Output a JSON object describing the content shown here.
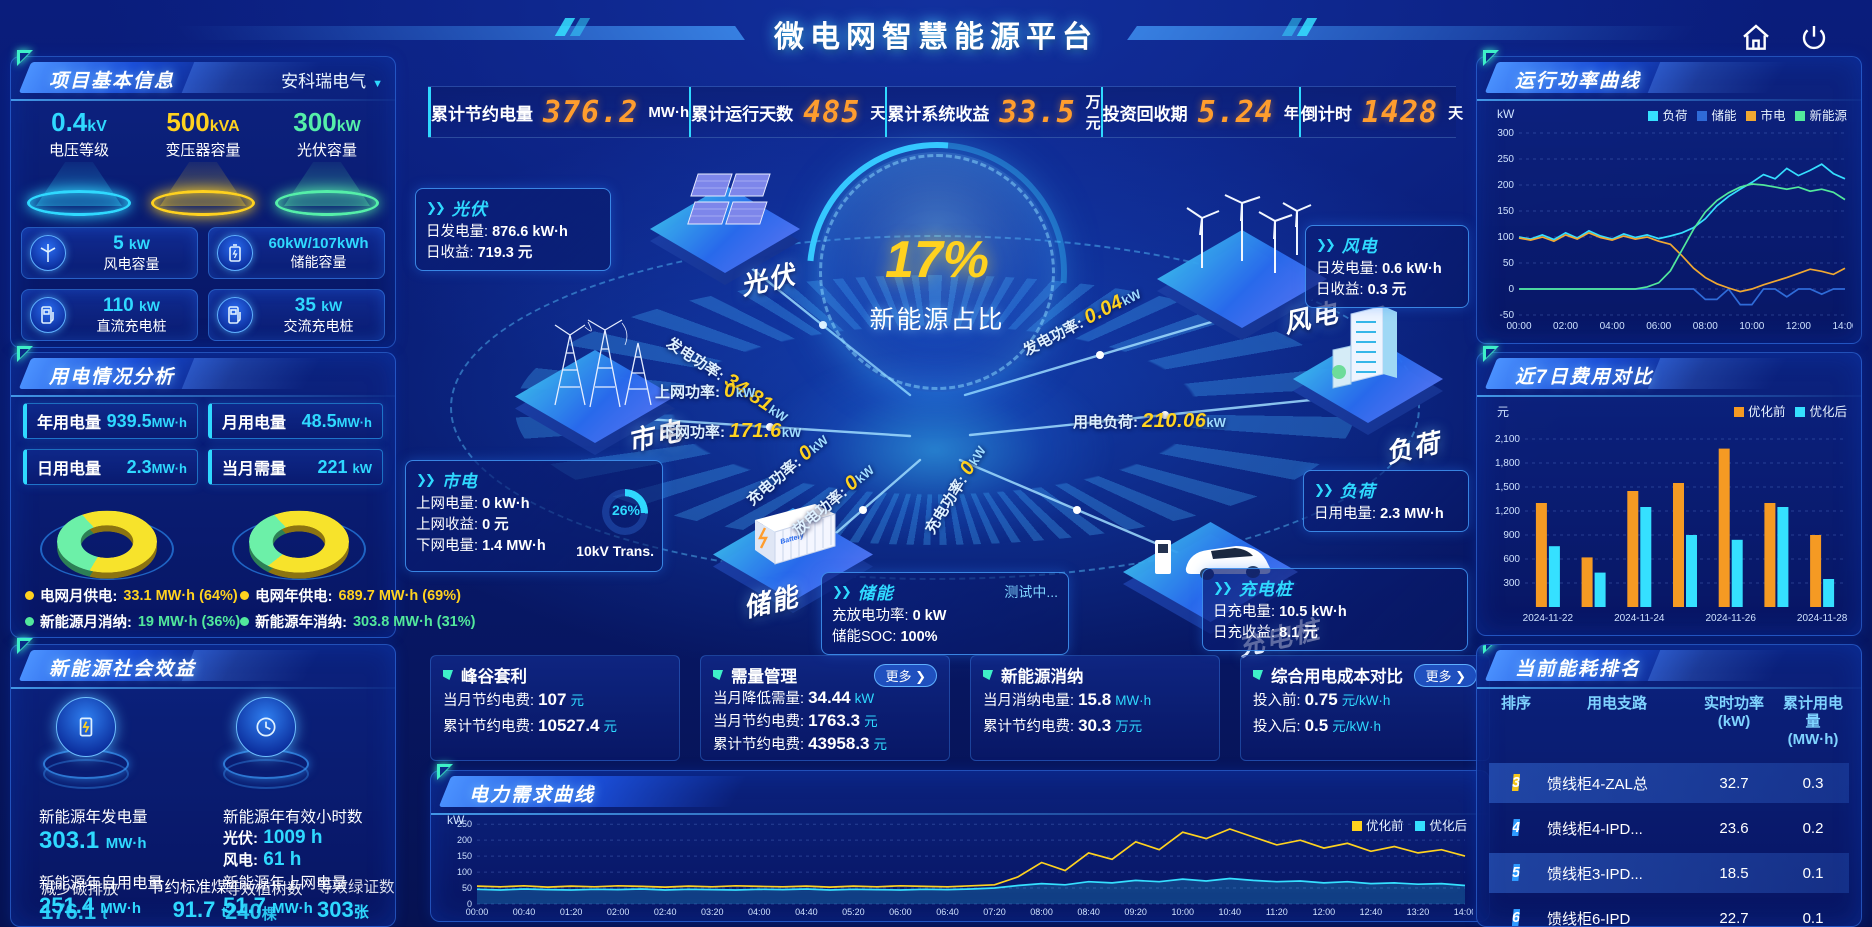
{
  "header": {
    "title": "微电网智慧能源平台"
  },
  "topstats": [
    {
      "label": "累计节约电量",
      "value": "376.2",
      "unit": "MW·h"
    },
    {
      "label": "累计运行天数",
      "value": "485",
      "unit": "天"
    },
    {
      "label": "累计系统收益",
      "value": "33.5",
      "unit": "万元"
    },
    {
      "label": "投资回收期",
      "value": "5.24",
      "unit": "年"
    },
    {
      "label": "倒计时",
      "value": "1428",
      "unit": "天"
    }
  ],
  "project": {
    "title": "项目基本信息",
    "company": "安科瑞电气",
    "spotlights": [
      {
        "value": "0.4",
        "unit": "kV",
        "label": "电压等级",
        "color": "#2fd9ff"
      },
      {
        "value": "500",
        "unit": "kVA",
        "label": "变压器容量",
        "color": "#ffd21f"
      },
      {
        "value": "300",
        "unit": "kW",
        "label": "光伏容量",
        "color": "#55efa9"
      }
    ],
    "cards": [
      {
        "value": "5",
        "unit": "kW",
        "label": "风电容量",
        "icon": "wind-turbine-icon"
      },
      {
        "value": "60kW/107kWh",
        "unit": "",
        "label": "储能容量",
        "icon": "battery-icon"
      },
      {
        "value": "110",
        "unit": "kW",
        "label": "直流充电桩",
        "icon": "dc-charger-icon"
      },
      {
        "value": "35",
        "unit": "kW",
        "label": "交流充电桩",
        "icon": "ac-charger-icon"
      }
    ]
  },
  "usage": {
    "title": "用电情况分析",
    "stats": [
      {
        "label": "年用电量",
        "value": "939.5",
        "unit": "MW·h"
      },
      {
        "label": "月用电量",
        "value": "48.5",
        "unit": "MW·h"
      },
      {
        "label": "日用电量",
        "value": "2.3",
        "unit": "MW·h"
      },
      {
        "label": "当月需量",
        "value": "221",
        "unit": "kW"
      }
    ],
    "donuts": {
      "month": {
        "grid_pct": 64,
        "renew_pct": 36
      },
      "year": {
        "grid_pct": 69,
        "renew_pct": 31
      }
    },
    "legend": [
      {
        "label": "电网月供电:",
        "value": "33.1 MW·h (64%)",
        "color": "#ffd21f"
      },
      {
        "label": "新能源月消纳:",
        "value": "19 MW·h (36%)",
        "color": "#52e89c"
      },
      {
        "label": "电网年供电:",
        "value": "689.7 MW·h (69%)",
        "color": "#ffd21f"
      },
      {
        "label": "新能源年消纳:",
        "value": "303.8 MW·h (31%)",
        "color": "#52e89c"
      }
    ]
  },
  "benefit": {
    "title": "新能源社会效益",
    "gen": {
      "label": "新能源年发电量",
      "value": "303.1",
      "unit": "MW·h"
    },
    "hours": {
      "label": "新能源年有效小时数",
      "pv_label": "光伏:",
      "pv_value": "1009 h",
      "wind_label": "风电:",
      "wind_value": "61 h"
    },
    "self_use": {
      "label": "新能源年自用电量",
      "value": "251.4",
      "unit": "MW·h"
    },
    "carbon": {
      "label": "减少碳排放",
      "value": "176.1",
      "unit": "t"
    },
    "coal": {
      "label": "节约标准煤",
      "value": "91.7",
      "unit": "t"
    },
    "to_grid": {
      "label": "新能源年上网电量",
      "value": "51.7",
      "unit": "MW·h"
    },
    "trees": {
      "label": "等效植树数",
      "value": "240",
      "unit": "棵"
    },
    "certs": {
      "label": "等效绿证数",
      "value": "303",
      "unit": "张"
    }
  },
  "flow": {
    "sphere": {
      "pct": "17%",
      "label": "新能源占比"
    },
    "nodes": {
      "pv": "光伏",
      "grid": "市电",
      "storage": "储能",
      "wind": "风电",
      "load": "负荷",
      "charger": "充电桩"
    },
    "pv_box": {
      "title": "光伏",
      "l1": "日发电量:",
      "v1": "876.6 kW·h",
      "l2": "日收益:",
      "v2": "719.3 元"
    },
    "grid_box": {
      "title": "市电",
      "l1": "上网电量:",
      "v1": "0 kW·h",
      "l2": "上网收益:",
      "v2": "0 元",
      "l3": "下网电量:",
      "v3": "1.4 MW·h",
      "gauge": "26%",
      "trans": "10kV Trans."
    },
    "wind_box": {
      "title": "风电",
      "l1": "日发电量:",
      "v1": "0.6 kW·h",
      "l2": "日收益:",
      "v2": "0.3 元"
    },
    "load_box": {
      "title": "负荷",
      "l1": "日用电量:",
      "v1": "2.3 MW·h"
    },
    "storage_box": {
      "title": "储能",
      "status": "测试中...",
      "l1": "充放电功率:",
      "v1": "0 kW",
      "l2": "储能SOC:",
      "v2": "100%"
    },
    "charger_box": {
      "title": "充电桩",
      "l1": "日充电量:",
      "v1": "10.5 kW·h",
      "l2": "日充收益:",
      "v2": "8.1 元"
    },
    "labels": {
      "pv_power": {
        "label": "发电功率:",
        "value": "34.81",
        "unit": "kW"
      },
      "up_power": {
        "label": "上网功率:",
        "value": "0",
        "unit": "kW"
      },
      "down_power": {
        "label": "下网功率:",
        "value": "171.6",
        "unit": "kW"
      },
      "wind_power": {
        "label": "发电功率:",
        "value": "0.04",
        "unit": "kW"
      },
      "load_power": {
        "label": "用电负荷:",
        "value": "210.06",
        "unit": "kW"
      },
      "chg_power": {
        "label": "充电功率:",
        "value": "0",
        "unit": "kW"
      },
      "dis_power": {
        "label": "放电功率:",
        "value": "0",
        "unit": "kW"
      },
      "ev_power": {
        "label": "充电功率:",
        "value": "0",
        "unit": "kW"
      }
    }
  },
  "cards": [
    {
      "title": "峰谷套利",
      "more": "",
      "rows": [
        {
          "label": "当月节约电费:",
          "value": "107",
          "unit": "元"
        },
        {
          "label": "累计节约电费:",
          "value": "10527.4",
          "unit": "元"
        }
      ]
    },
    {
      "title": "需量管理",
      "more": "更多",
      "rows": [
        {
          "label": "当月降低需量:",
          "value": "34.44",
          "unit": "kW"
        },
        {
          "label": "当月节约电费:",
          "value": "1763.3",
          "unit": "元"
        },
        {
          "label": "累计节约电费:",
          "value": "43958.3",
          "unit": "元"
        }
      ]
    },
    {
      "title": "新能源消纳",
      "more": "",
      "rows": [
        {
          "label": "当月消纳电量:",
          "value": "15.8",
          "unit": "MW·h"
        },
        {
          "label": "累计节约电费:",
          "value": "30.3",
          "unit": "万元"
        }
      ]
    },
    {
      "title": "综合用电成本对比",
      "more": "更多",
      "rows": [
        {
          "label": "投入前:",
          "value": "0.75",
          "unit": "元/kW·h"
        },
        {
          "label": "投入后:",
          "value": "0.5",
          "unit": "元/kW·h"
        }
      ]
    }
  ],
  "ranking": {
    "title": "当前能耗排名",
    "headers": [
      {
        "t": "排序",
        "s": ""
      },
      {
        "t": "用电支路",
        "s": ""
      },
      {
        "t": "实时功率",
        "s": "(kW)"
      },
      {
        "t": "累计用电量",
        "s": "(MW·h)"
      }
    ],
    "rows": [
      {
        "rank": "3",
        "name": "馈线柜4-ZAL总",
        "power": "32.7",
        "energy": "0.3",
        "badge": "#f5c51d"
      },
      {
        "rank": "4",
        "name": "馈线柜4-IPD...",
        "power": "23.6",
        "energy": "0.2",
        "badge": "#2f9bff"
      },
      {
        "rank": "5",
        "name": "馈线柜3-IPD...",
        "power": "18.5",
        "energy": "0.1",
        "badge": "#2f9bff"
      },
      {
        "rank": "6",
        "name": "馈线柜6-IPD",
        "power": "22.7",
        "energy": "0.1",
        "badge": "#2f9bff"
      }
    ]
  },
  "chart_data": [
    {
      "id": "run_power",
      "type": "line",
      "title": "运行功率曲线",
      "ylabel": "kW",
      "ylim": [
        -50,
        300
      ],
      "yticks": [
        300,
        250,
        200,
        150,
        100,
        50,
        0,
        -50
      ],
      "x_labels": [
        "00:00",
        "02:00",
        "04:00",
        "06:00",
        "08:00",
        "10:00",
        "12:00",
        "14:00"
      ],
      "legend_position": "top",
      "series": [
        {
          "name": "负荷",
          "color": "#35e0ff",
          "values": [
            100,
            96,
            104,
            95,
            108,
            98,
            112,
            102,
            96,
            106,
            99,
            104,
            97,
            102,
            108,
            118,
            135,
            160,
            178,
            192,
            205,
            220,
            212,
            232,
            218,
            228,
            240,
            222,
            212
          ]
        },
        {
          "name": "储能",
          "color": "#2f6bd8",
          "values": [
            0,
            0,
            0,
            0,
            0,
            0,
            0,
            0,
            0,
            0,
            0,
            0,
            0,
            0,
            0,
            0,
            -20,
            -20,
            0,
            -30,
            -30,
            0,
            0,
            -15,
            0,
            0,
            -10,
            0,
            0
          ]
        },
        {
          "name": "市电",
          "color": "#f0a832",
          "values": [
            98,
            94,
            100,
            92,
            104,
            96,
            108,
            99,
            94,
            102,
            96,
            100,
            92,
            86,
            64,
            40,
            22,
            10,
            2,
            -5,
            0,
            8,
            15,
            22,
            30,
            38,
            34,
            28,
            40
          ]
        },
        {
          "name": "新能源",
          "color": "#52e89c",
          "values": [
            0,
            0,
            0,
            0,
            0,
            0,
            0,
            0,
            0,
            0,
            0,
            4,
            12,
            35,
            75,
            115,
            148,
            170,
            185,
            196,
            202,
            200,
            196,
            192,
            196,
            188,
            192,
            186,
            172
          ]
        }
      ]
    },
    {
      "id": "cost_compare",
      "type": "bar",
      "title": "近7日费用对比",
      "ylabel": "元",
      "ylim": [
        0,
        2200
      ],
      "yticks": [
        2100,
        1800,
        1500,
        1200,
        900,
        600,
        300
      ],
      "ytick_labels": [
        "2,100",
        "1,800",
        "1,500",
        "1,200",
        "900",
        "600",
        "300"
      ],
      "categories": [
        "2024-11-22",
        "2024-11-23",
        "2024-11-24",
        "2024-11-25",
        "2024-11-26",
        "2024-11-27",
        "2024-11-28"
      ],
      "x_labels": [
        "2024-11-22",
        "2024-11-24",
        "2024-11-26",
        "2024-11-28"
      ],
      "legend_position": "top-right",
      "series": [
        {
          "name": "优化前",
          "color": "#f59a23",
          "values": [
            1300,
            620,
            1450,
            1550,
            1980,
            1300,
            900
          ]
        },
        {
          "name": "优化后",
          "color": "#35e0ff",
          "values": [
            760,
            430,
            1250,
            900,
            840,
            1250,
            350
          ]
        }
      ]
    },
    {
      "id": "demand",
      "type": "line",
      "title": "电力需求曲线",
      "ylabel": "kW",
      "ylim": [
        0,
        260
      ],
      "yticks": [
        250,
        200,
        150,
        100,
        50,
        0
      ],
      "x_labels": [
        "00:00",
        "00:40",
        "01:20",
        "02:00",
        "02:40",
        "03:20",
        "04:00",
        "04:40",
        "05:20",
        "06:00",
        "06:40",
        "07:20",
        "08:00",
        "08:40",
        "09:20",
        "10:00",
        "10:40",
        "11:20",
        "12:00",
        "12:40",
        "13:20",
        "14:00"
      ],
      "legend_position": "top-right",
      "series": [
        {
          "name": "优化前",
          "color": "#ffd21f",
          "values": [
            56,
            54,
            57,
            53,
            56,
            54,
            57,
            55,
            53,
            56,
            54,
            57,
            55,
            54,
            56,
            53,
            56,
            54,
            57,
            55,
            54,
            57,
            60,
            85,
            130,
            105,
            160,
            140,
            195,
            170,
            225,
            205,
            235,
            210,
            185,
            200,
            175,
            190,
            165,
            180,
            160,
            170,
            150
          ]
        },
        {
          "name": "优化后",
          "color": "#35e0ff",
          "area": true,
          "values": [
            46,
            44,
            47,
            45,
            44,
            46,
            45,
            47,
            44,
            46,
            45,
            44,
            46,
            45,
            47,
            44,
            46,
            45,
            44,
            46,
            45,
            47,
            50,
            58,
            64,
            60,
            70,
            66,
            74,
            70,
            78,
            72,
            80,
            74,
            70,
            72,
            66,
            70,
            64,
            66,
            62,
            64,
            58
          ]
        }
      ]
    }
  ]
}
